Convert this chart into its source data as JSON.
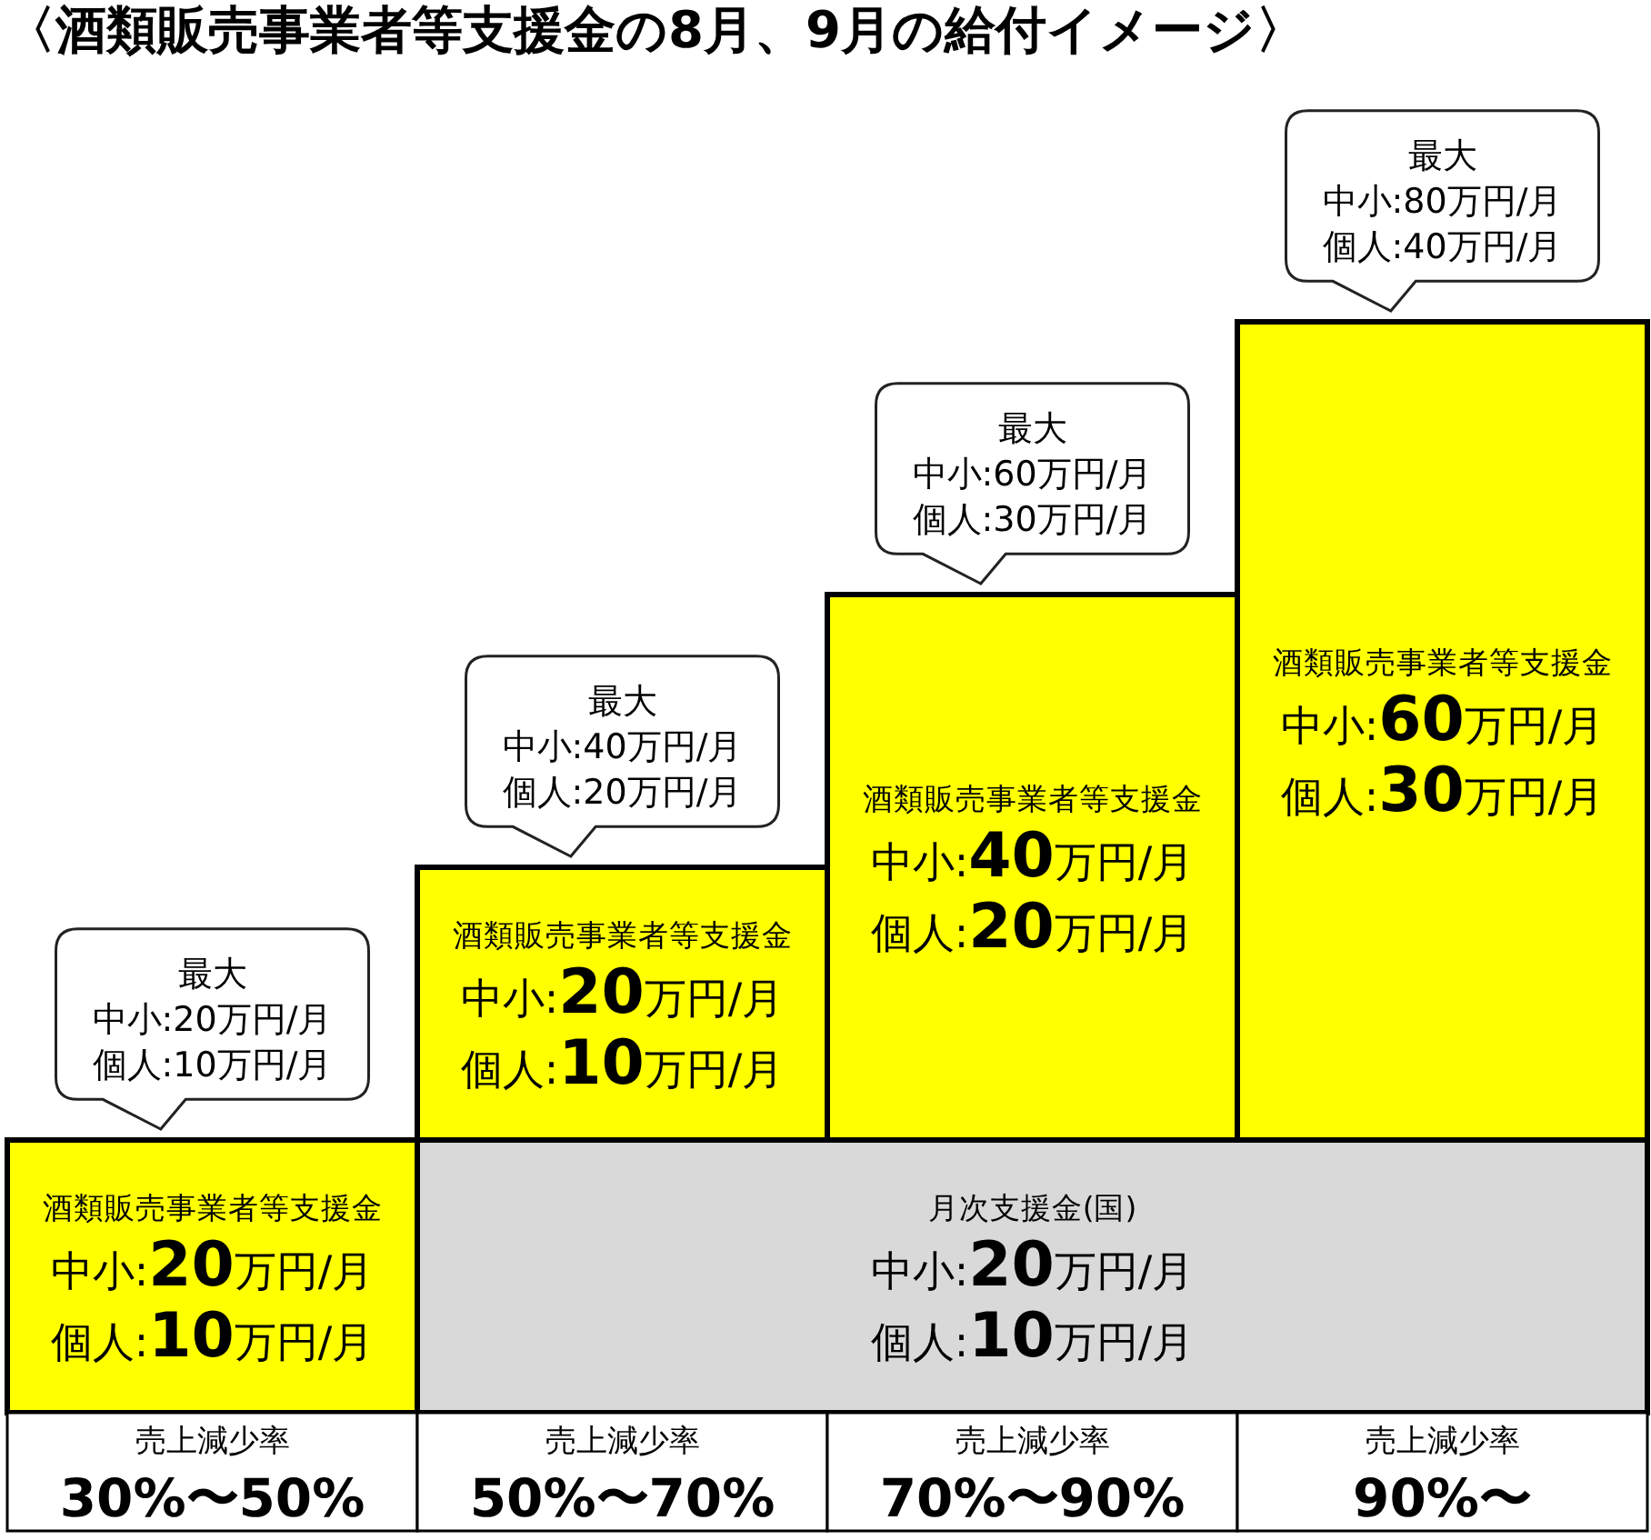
{
  "chart_data": {
    "type": "bar",
    "title": "〈酒類販売事業者等支援金の8月、9月の給付イメージ〉",
    "categories": [
      "売上減少率\n30%〜50%",
      "売上減少率\n50%〜70%",
      "売上減少率\n70%〜90%",
      "売上減少率\n90%〜"
    ],
    "stacked": true,
    "series": [
      {
        "name": "月次支援金(国)",
        "color": "#d9d9d9",
        "values": [
          null,
          20,
          20,
          20
        ],
        "value_labels": [
          null,
          null,
          "中小:20万円/月",
          null
        ]
      },
      {
        "name": "酒類販売事業者等支援金",
        "color": "#ffff00",
        "values": [
          20,
          20,
          40,
          60
        ],
        "value_labels": [
          "中小:20万円/月",
          "中小:20万円/月",
          "中小:40万円/月",
          "中小:60万円/月"
        ]
      }
    ],
    "annotations": [
      "個人:10万円/月",
      "個人:10万円/月",
      "個人:10万円/月",
      "個人:20万円/月",
      "個人:30万円/月"
    ],
    "totals": [
      "最大中小:20万円/月個人:10万円/月",
      "最大中小:40万円/月個人:20万円/月",
      "最大中小:60万円/月個人:30万円/月",
      "最大中小:80万円/月個人:40万円/月"
    ]
  }
}
